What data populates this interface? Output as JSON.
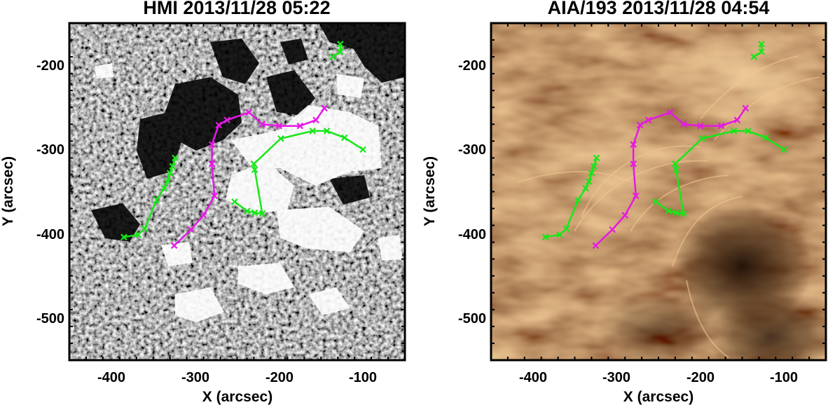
{
  "colors": {
    "pil": "#e619e6",
    "green": "#19e619",
    "hmi_bg": "#8a8a8a",
    "aia_bg": "#8a5a24"
  },
  "panels": [
    {
      "id": "hmi",
      "title": "HMI 2013/11/28 05:22",
      "xlabel": "X (arcsec)",
      "ylabel": "Y (arcsec)",
      "xlim": [
        -450,
        -50
      ],
      "ylim": [
        -550,
        -150
      ],
      "xticks": [
        "-400",
        "-300",
        "-200",
        "-100"
      ],
      "yticks": [
        "-200",
        "-300",
        "-400",
        "-500"
      ],
      "background": "magnetogram"
    },
    {
      "id": "aia",
      "title": "AIA/193 2013/11/28 04:54",
      "xlabel": "X (arcsec)",
      "ylabel": "Y (arcsec)",
      "xlim": [
        -450,
        -50
      ],
      "ylim": [
        -550,
        -150
      ],
      "xticks": [
        "-400",
        "-300",
        "-200",
        "-100"
      ],
      "yticks": [
        "-200",
        "-300",
        "-400",
        "-500"
      ],
      "background": "euv-193"
    }
  ],
  "overlays": {
    "magenta_line": [
      [
        -325,
        -414
      ],
      [
        -305,
        -395
      ],
      [
        -290,
        -378
      ],
      [
        -277,
        -355
      ],
      [
        -280,
        -317
      ],
      [
        -280,
        -294
      ],
      [
        -272,
        -271
      ],
      [
        -262,
        -265
      ],
      [
        -236,
        -256
      ],
      [
        -220,
        -270
      ],
      [
        -200,
        -272
      ],
      [
        -175,
        -272
      ],
      [
        -156,
        -265
      ],
      [
        -146,
        -251
      ]
    ],
    "green_left": [
      [
        -385,
        -404
      ],
      [
        -368,
        -401
      ],
      [
        -360,
        -394
      ],
      [
        -346,
        -360
      ],
      [
        -337,
        -346
      ],
      [
        -333,
        -338
      ],
      [
        -330,
        -328
      ],
      [
        -327,
        -320
      ],
      [
        -324,
        -310
      ]
    ],
    "green_middle": [
      [
        -253,
        -362
      ],
      [
        -238,
        -373
      ],
      [
        -229,
        -375
      ],
      [
        -220,
        -376
      ],
      [
        -229,
        -324
      ],
      [
        -230,
        -317
      ],
      [
        -198,
        -287
      ],
      [
        -160,
        -278
      ],
      [
        -143,
        -278
      ],
      [
        -122,
        -286
      ],
      [
        -100,
        -300
      ]
    ],
    "green_top": [
      [
        -136,
        -190
      ],
      [
        -127,
        -184
      ],
      [
        -127,
        -175
      ]
    ]
  }
}
